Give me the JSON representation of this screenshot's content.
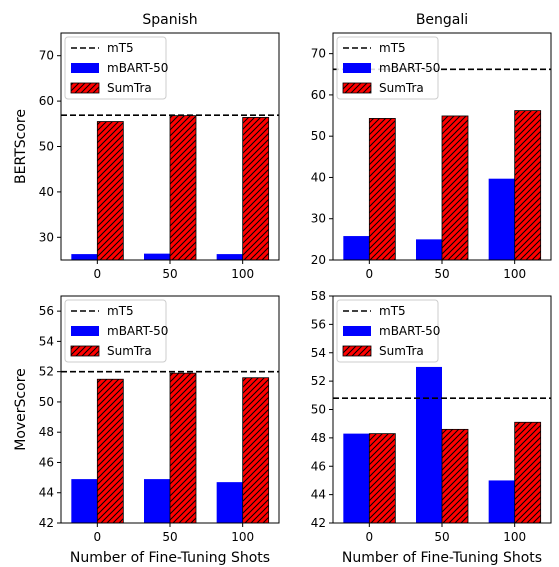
{
  "figure": {
    "xlabel": "Number of Fine-Tuning Shots",
    "row_ylabels": [
      "BERTScore",
      "MoverScore"
    ],
    "column_titles": [
      "Spanish",
      "Bengali"
    ]
  },
  "legend": {
    "entries": [
      {
        "label": "mT5",
        "kind": "dashed-line",
        "color": "#000000"
      },
      {
        "label": "mBART-50",
        "kind": "bar",
        "color": "#0000ff"
      },
      {
        "label": "SumTra",
        "kind": "hatched-bar",
        "color": "#ff0000"
      }
    ]
  },
  "chart_data": [
    {
      "type": "bar",
      "title": "Spanish",
      "ylabel": "BERTScore",
      "xlabel": "",
      "categories": [
        "0",
        "50",
        "100"
      ],
      "ylim": [
        25,
        75
      ],
      "yticks": [
        30,
        40,
        50,
        60,
        70
      ],
      "series": [
        {
          "name": "mBART-50",
          "values": [
            26.3,
            26.4,
            26.3
          ],
          "color": "#0000ff",
          "hatch": false
        },
        {
          "name": "SumTra",
          "values": [
            55.5,
            56.8,
            56.4
          ],
          "color": "#ff0000",
          "hatch": true
        }
      ],
      "reference_line": {
        "name": "mT5",
        "value": 56.9
      }
    },
    {
      "type": "bar",
      "title": "Bengali",
      "ylabel": "",
      "xlabel": "",
      "categories": [
        "0",
        "50",
        "100"
      ],
      "ylim": [
        20,
        75
      ],
      "yticks": [
        20,
        30,
        40,
        50,
        60,
        70
      ],
      "series": [
        {
          "name": "mBART-50",
          "values": [
            25.8,
            25.0,
            39.7
          ],
          "color": "#0000ff",
          "hatch": false
        },
        {
          "name": "SumTra",
          "values": [
            54.3,
            54.9,
            56.2
          ],
          "color": "#ff0000",
          "hatch": true
        }
      ],
      "reference_line": {
        "name": "mT5",
        "value": 66.2
      }
    },
    {
      "type": "bar",
      "title": "",
      "ylabel": "MoverScore",
      "xlabel": "Number of Fine-Tuning Shots",
      "categories": [
        "0",
        "50",
        "100"
      ],
      "ylim": [
        42,
        57
      ],
      "yticks": [
        42,
        44,
        46,
        48,
        50,
        52,
        54,
        56
      ],
      "series": [
        {
          "name": "mBART-50",
          "values": [
            44.9,
            44.9,
            44.7
          ],
          "color": "#0000ff",
          "hatch": false
        },
        {
          "name": "SumTra",
          "values": [
            51.5,
            51.9,
            51.6
          ],
          "color": "#ff0000",
          "hatch": true
        }
      ],
      "reference_line": {
        "name": "mT5",
        "value": 52.0
      }
    },
    {
      "type": "bar",
      "title": "",
      "ylabel": "",
      "xlabel": "Number of Fine-Tuning Shots",
      "categories": [
        "0",
        "50",
        "100"
      ],
      "ylim": [
        42,
        58
      ],
      "yticks": [
        42,
        44,
        46,
        48,
        50,
        52,
        54,
        56,
        58
      ],
      "series": [
        {
          "name": "mBART-50",
          "values": [
            48.3,
            53.0,
            45.0
          ],
          "color": "#0000ff",
          "hatch": false
        },
        {
          "name": "SumTra",
          "values": [
            48.3,
            48.6,
            49.1
          ],
          "color": "#ff0000",
          "hatch": true
        }
      ],
      "reference_line": {
        "name": "mT5",
        "value": 50.8
      }
    }
  ]
}
